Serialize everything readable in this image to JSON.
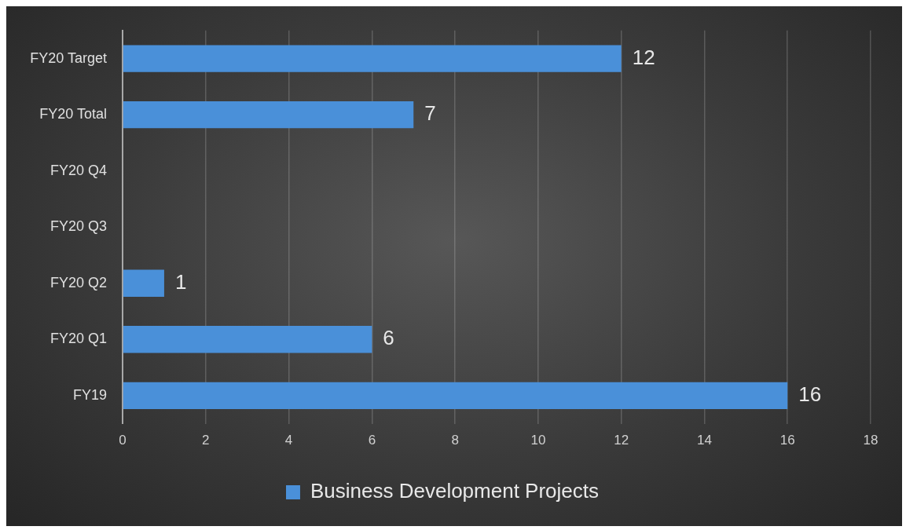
{
  "chart_data": {
    "type": "bar",
    "orientation": "horizontal",
    "categories": [
      "FY20 Target",
      "FY20 Total",
      "FY20 Q4",
      "FY20 Q3",
      "FY20 Q2",
      "FY20 Q1",
      "FY19"
    ],
    "series": [
      {
        "name": "Business Development Projects",
        "color": "#4a90d9",
        "values": [
          12,
          7,
          null,
          null,
          1,
          6,
          16
        ]
      }
    ],
    "xlim": [
      0,
      18
    ],
    "xticks": [
      0,
      2,
      4,
      6,
      8,
      10,
      12,
      14,
      16,
      18
    ],
    "grid": "x",
    "legend": "bottom",
    "data_labels": true
  }
}
